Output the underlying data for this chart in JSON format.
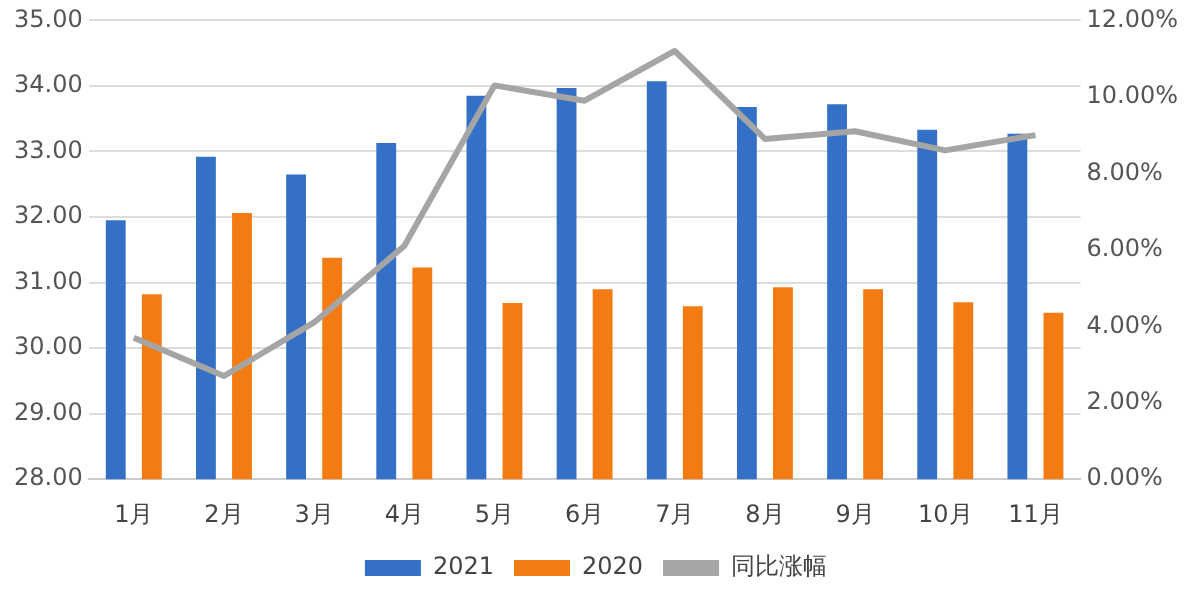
{
  "chart_data": {
    "type": "bar",
    "categories": [
      "1月",
      "2月",
      "3月",
      "4月",
      "5月",
      "6月",
      "7月",
      "8月",
      "9月",
      "10月",
      "11月"
    ],
    "series": [
      {
        "name": "2021",
        "color": "#3470c6",
        "values": [
          31.95,
          32.92,
          32.65,
          33.13,
          33.85,
          33.97,
          34.07,
          33.68,
          33.72,
          33.33,
          33.27
        ]
      },
      {
        "name": "2020",
        "color": "#f47b12",
        "values": [
          30.82,
          32.06,
          31.38,
          31.23,
          30.69,
          30.9,
          30.64,
          30.93,
          30.9,
          30.7,
          30.54
        ]
      },
      {
        "name": "同比涨幅",
        "type": "line",
        "axis": "y2",
        "color": "#a5a5a5",
        "values": [
          3.7,
          2.7,
          4.1,
          6.1,
          10.3,
          9.9,
          11.2,
          8.9,
          9.1,
          8.6,
          9.0
        ]
      }
    ],
    "ylim": [
      28,
      35
    ],
    "yticks": [
      {
        "value": 28,
        "label": "28.00"
      },
      {
        "value": 29,
        "label": "29.00"
      },
      {
        "value": 30,
        "label": "30.00"
      },
      {
        "value": 31,
        "label": "31.00"
      },
      {
        "value": 32,
        "label": "32.00"
      },
      {
        "value": 33,
        "label": "33.00"
      },
      {
        "value": 34,
        "label": "34.00"
      },
      {
        "value": 35,
        "label": "35.00"
      }
    ],
    "y2lim": [
      0,
      12
    ],
    "y2ticks": [
      {
        "value": 0,
        "label": "0.00%"
      },
      {
        "value": 2,
        "label": "2.00%"
      },
      {
        "value": 4,
        "label": "4.00%"
      },
      {
        "value": 6,
        "label": "6.00%"
      },
      {
        "value": 8,
        "label": "8.00%"
      },
      {
        "value": 10,
        "label": "10.00%"
      },
      {
        "value": 12,
        "label": "12.00%"
      }
    ],
    "grid": "y",
    "legend": "bottom",
    "marker": "none"
  }
}
